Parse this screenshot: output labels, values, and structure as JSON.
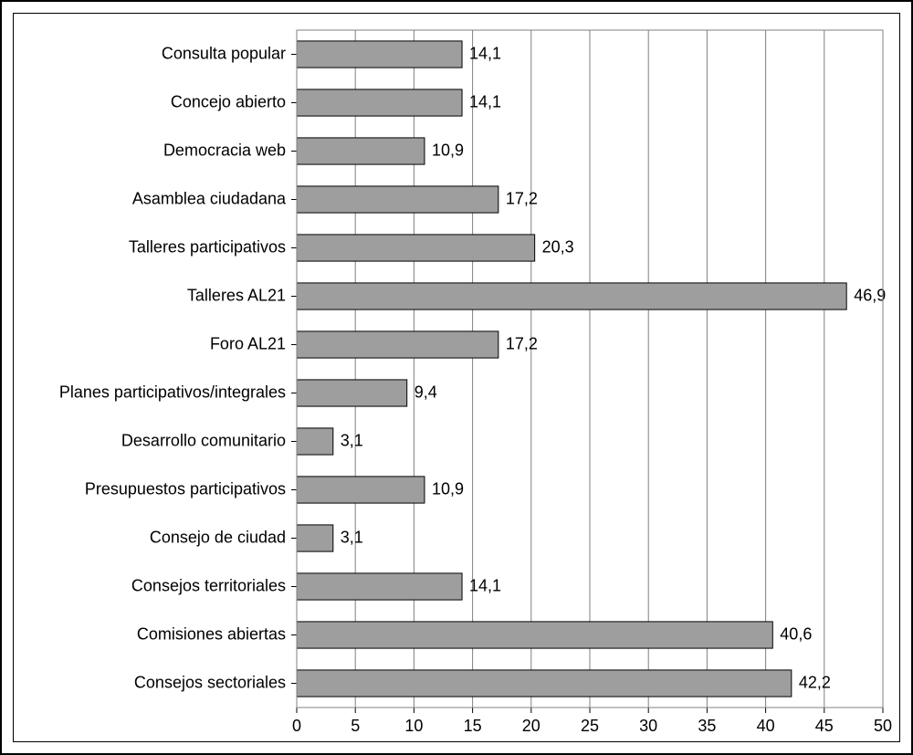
{
  "chart": {
    "type": "bar-horizontal",
    "background_color": "#ffffff",
    "outer_border_color": "#000000",
    "inner_border_color": "#000000",
    "plot_border_color": "#808080",
    "grid_color": "#808080",
    "bar_fill": "#9e9e9e",
    "bar_border": "#000000",
    "label_color": "#000000",
    "tick_color": "#000000",
    "xlim": [
      0,
      50
    ],
    "xtick_step": 5,
    "xticks": [
      0,
      5,
      10,
      15,
      20,
      25,
      30,
      35,
      40,
      45,
      50
    ],
    "bar_height_ratio": 0.55,
    "font_family": "Arial, Helvetica, sans-serif",
    "axis_fontsize": 18,
    "category_fontsize": 18,
    "value_fontsize": 18,
    "decimal_separator": ",",
    "categories": [
      {
        "label": "Consulta popular",
        "value": 14.1
      },
      {
        "label": "Concejo abierto",
        "value": 14.1
      },
      {
        "label": "Democracia web",
        "value": 10.9
      },
      {
        "label": "Asamblea ciudadana",
        "value": 17.2
      },
      {
        "label": "Talleres participativos",
        "value": 20.3
      },
      {
        "label": "Talleres AL21",
        "value": 46.9
      },
      {
        "label": "Foro AL21",
        "value": 17.2
      },
      {
        "label": "Planes participativos/integrales",
        "value": 9.4
      },
      {
        "label": "Desarrollo comunitario",
        "value": 3.1
      },
      {
        "label": "Presupuestos participativos",
        "value": 10.9
      },
      {
        "label": "Consejo de ciudad",
        "value": 3.1
      },
      {
        "label": "Consejos territoriales",
        "value": 14.1
      },
      {
        "label": "Comisiones abiertas",
        "value": 40.6
      },
      {
        "label": "Consejos sectoriales",
        "value": 42.2
      }
    ]
  }
}
